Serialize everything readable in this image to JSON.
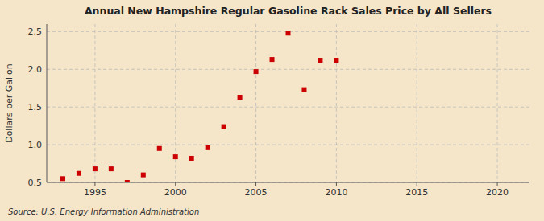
{
  "chart_data": {
    "type": "scatter",
    "title": "Annual New Hampshire Regular Gasoline Rack Sales Price by All Sellers",
    "y_label": "Dollars per Gallon",
    "annotations": [
      "Source: U.S. Energy Information Administration"
    ],
    "x": [
      1993,
      1994,
      1995,
      1996,
      1997,
      1998,
      1999,
      2000,
      2001,
      2002,
      2003,
      2004,
      2005,
      2006,
      2007,
      2008,
      2009,
      2010
    ],
    "values": [
      0.55,
      0.62,
      0.68,
      0.68,
      0.5,
      0.6,
      0.95,
      0.84,
      0.82,
      0.96,
      1.24,
      1.63,
      1.97,
      2.13,
      2.48,
      1.73,
      2.12,
      2.12
    ],
    "color": "#cc0000",
    "marker": "square",
    "xlim": [
      1992,
      2022
    ],
    "ylim": [
      0.5,
      2.6
    ],
    "xticks": [
      1995,
      2000,
      2005,
      2010,
      2015,
      2020
    ],
    "yticks": [
      0.5,
      {
        "value": 1.0,
        "label": "1.0"
      },
      1.5,
      {
        "value": 2.0,
        "label": "2.0"
      },
      2.5
    ],
    "grid": true
  }
}
